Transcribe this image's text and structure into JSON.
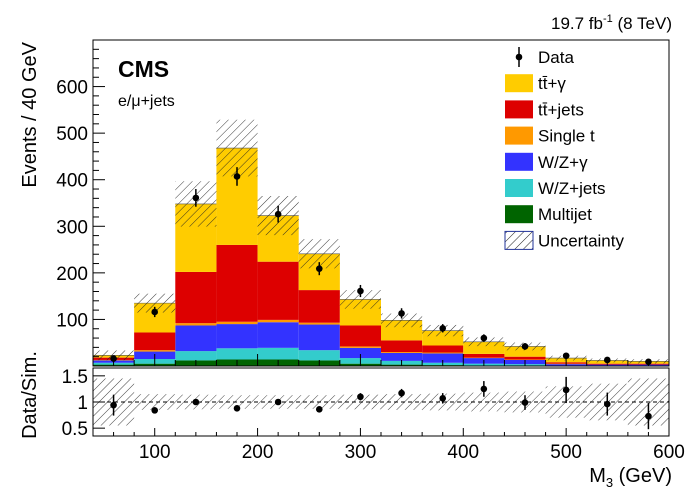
{
  "chart_data": [
    {
      "type": "bar",
      "stacked": true,
      "panel": "main",
      "xlabel": "M3 (GeV)",
      "ylabel": "Events / 40 GeV",
      "xlim": [
        40,
        600
      ],
      "ylim": [
        0,
        700
      ],
      "bin_edges": [
        40,
        80,
        120,
        160,
        200,
        240,
        280,
        320,
        360,
        400,
        440,
        480,
        520,
        560,
        600
      ],
      "yticks": [
        100,
        200,
        300,
        400,
        500,
        600
      ],
      "series": [
        {
          "name": "Multijet",
          "color": "#006400",
          "values": [
            3,
            5,
            12,
            14,
            14,
            12,
            5,
            3,
            2,
            1,
            1,
            0,
            0,
            0
          ]
        },
        {
          "name": "W/Z+jets",
          "color": "#33cccc",
          "values": [
            4,
            10,
            20,
            24,
            25,
            22,
            12,
            8,
            5,
            4,
            3,
            1,
            1,
            1
          ]
        },
        {
          "name": "W/Z+γ",
          "color": "#3333ff",
          "values": [
            5,
            16,
            55,
            52,
            55,
            55,
            22,
            17,
            20,
            12,
            9,
            3,
            2,
            2
          ]
        },
        {
          "name": "Single t",
          "color": "#ff9900",
          "values": [
            1,
            3,
            5,
            5,
            5,
            4,
            3,
            2,
            2,
            1,
            1,
            1,
            0,
            0
          ]
        },
        {
          "name": "tt̄+jets",
          "color": "#dd0000",
          "values": [
            5,
            38,
            110,
            165,
            125,
            70,
            45,
            25,
            15,
            8,
            6,
            3,
            2,
            2
          ]
        },
        {
          "name": "tt̄+γ",
          "color": "#ffcc00",
          "values": [
            5,
            63,
            146,
            208,
            99,
            78,
            56,
            43,
            32,
            26,
            22,
            9,
            7,
            5
          ]
        }
      ],
      "data": {
        "name": "Data",
        "x": [
          60,
          100,
          140,
          180,
          220,
          260,
          300,
          340,
          380,
          420,
          460,
          500,
          540,
          580
        ],
        "y": [
          16,
          116,
          361,
          407,
          326,
          209,
          161,
          113,
          81,
          60,
          42,
          22,
          13,
          9
        ],
        "err": [
          4,
          11,
          19,
          20,
          18,
          14,
          13,
          11,
          9,
          8,
          7,
          5,
          4,
          3
        ]
      },
      "uncertainty_rel": [
        0.45,
        0.15,
        0.14,
        0.13,
        0.13,
        0.13,
        0.14,
        0.15,
        0.16,
        0.18,
        0.2,
        0.3,
        0.35,
        0.45
      ],
      "legend": {
        "position": "top-right",
        "entries": [
          {
            "label": "Data",
            "style": "marker"
          },
          {
            "label": "tt̄+γ",
            "color": "#ffcc00"
          },
          {
            "label": "tt̄+jets",
            "color": "#dd0000"
          },
          {
            "label": "Single t",
            "color": "#ff9900"
          },
          {
            "label": "W/Z+γ",
            "color": "#3333ff"
          },
          {
            "label": "W/Z+jets",
            "color": "#33cccc"
          },
          {
            "label": "Multijet",
            "color": "#006400"
          },
          {
            "label": "Uncertainty",
            "style": "hatch"
          }
        ]
      },
      "annotations": {
        "experiment": "CMS",
        "channel": "e/μ+jets",
        "lumi": "19.7 fb-1 (8 TeV)"
      }
    },
    {
      "type": "scatter",
      "panel": "ratio",
      "xlabel": "M3 (GeV)",
      "ylabel": "Data/Sim.",
      "xlim": [
        40,
        600
      ],
      "ylim": [
        0.35,
        1.65
      ],
      "yticks": [
        0.5,
        1,
        1.5
      ],
      "xticks": [
        100,
        200,
        300,
        400,
        500,
        600
      ],
      "reference_line": 1,
      "x": [
        60,
        100,
        140,
        180,
        220,
        260,
        300,
        340,
        380,
        420,
        460,
        500,
        540,
        580
      ],
      "y": [
        0.94,
        0.84,
        1.0,
        0.88,
        1.0,
        0.86,
        1.1,
        1.17,
        1.07,
        1.25,
        0.99,
        1.23,
        0.96,
        0.73
      ],
      "err": [
        0.2,
        0.06,
        0.02,
        0.02,
        0.03,
        0.03,
        0.07,
        0.08,
        0.1,
        0.15,
        0.14,
        0.25,
        0.22,
        0.25
      ],
      "uncertainty_band_rel": [
        0.45,
        0.15,
        0.14,
        0.13,
        0.13,
        0.13,
        0.14,
        0.15,
        0.16,
        0.18,
        0.2,
        0.3,
        0.35,
        0.45
      ]
    }
  ]
}
